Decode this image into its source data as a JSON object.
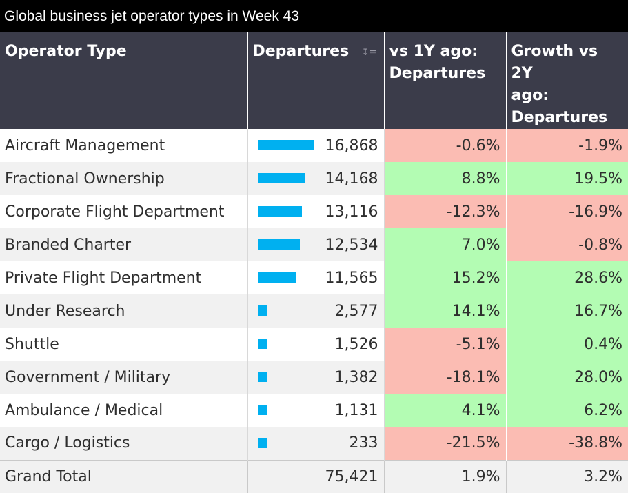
{
  "title": "Global business jet operator types in Week 43",
  "chart_data": {
    "type": "table",
    "columns": [
      "Operator Type",
      "Departures",
      "vs 1Y ago: Departures",
      "Growth vs 2Y ago: Departures"
    ],
    "rows": [
      {
        "operator": "Aircraft Management",
        "departures": 16868,
        "departures_text": "16,868",
        "vs1y": "-0.6%",
        "vs2y": "-1.9%"
      },
      {
        "operator": "Fractional Ownership",
        "departures": 14168,
        "departures_text": "14,168",
        "vs1y": "8.8%",
        "vs2y": "19.5%"
      },
      {
        "operator": "Corporate Flight Department",
        "departures": 13116,
        "departures_text": "13,116",
        "vs1y": "-12.3%",
        "vs2y": "-16.9%"
      },
      {
        "operator": "Branded Charter",
        "departures": 12534,
        "departures_text": "12,534",
        "vs1y": "7.0%",
        "vs2y": "-0.8%"
      },
      {
        "operator": "Private Flight Department",
        "departures": 11565,
        "departures_text": "11,565",
        "vs1y": "15.2%",
        "vs2y": "28.6%"
      },
      {
        "operator": "Under Research",
        "departures": 2577,
        "departures_text": "2,577",
        "vs1y": "14.1%",
        "vs2y": "16.7%"
      },
      {
        "operator": "Shuttle",
        "departures": 1526,
        "departures_text": "1,526",
        "vs1y": "-5.1%",
        "vs2y": "0.4%"
      },
      {
        "operator": "Government / Military",
        "departures": 1382,
        "departures_text": "1,382",
        "vs1y": "-18.1%",
        "vs2y": "28.0%"
      },
      {
        "operator": "Ambulance / Medical",
        "departures": 1131,
        "departures_text": "1,131",
        "vs1y": "4.1%",
        "vs2y": "6.2%"
      },
      {
        "operator": "Cargo / Logistics",
        "departures": 233,
        "departures_text": "233",
        "vs1y": "-21.5%",
        "vs2y": "-38.8%"
      }
    ],
    "total": {
      "label": "Grand Total",
      "departures": 75421,
      "departures_text": "75,421",
      "vs1y": "1.9%",
      "vs2y": "3.2%"
    },
    "colors": {
      "bar": "#00b0f0",
      "positive": "#b3fcb3",
      "negative": "#fbbcb3",
      "header": "#3b3c4a"
    }
  },
  "header": {
    "col1": "Operator Type",
    "col2": "Departures",
    "col3_line1": "vs 1Y ago:",
    "col3_line2": "Departures",
    "col4_line1": "Growth vs 2Y",
    "col4_line2": "ago:",
    "col4_line3": "Departures"
  },
  "icons": {
    "sort": "sort-descending-icon"
  }
}
